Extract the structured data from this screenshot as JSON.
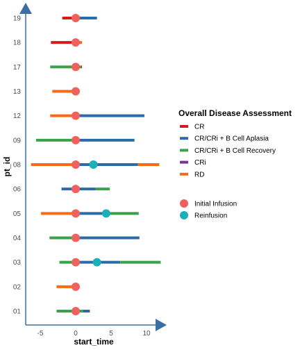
{
  "chart_data": {
    "type": "swimmer",
    "xlabel": "start_time",
    "ylabel": "pt_id",
    "xlim": [
      -7,
      12.5
    ],
    "x_ticks": [
      -5,
      0,
      5,
      10
    ],
    "categories": [
      "01",
      "02",
      "03",
      "04",
      "05",
      "06",
      "08",
      "09",
      "12",
      "13",
      "17",
      "18",
      "19"
    ],
    "legend_assessment": {
      "title": "Overall Disease Assessment",
      "items": [
        {
          "key": "CR",
          "label": "CR",
          "color": "#d7191c"
        },
        {
          "key": "BA",
          "label": "CR/CRi + B Cell Aplasia",
          "color": "#2c6ba8"
        },
        {
          "key": "BR",
          "label": "CR/CRi + B Cell Recovery",
          "color": "#3aa14a"
        },
        {
          "key": "CRi",
          "label": "CRi",
          "color": "#7b3294"
        },
        {
          "key": "RD",
          "label": "RD",
          "color": "#fb6a12"
        }
      ]
    },
    "legend_events": {
      "items": [
        {
          "key": "initial",
          "label": "Initial Infusion",
          "color": "#f0605d"
        },
        {
          "key": "reinfusion",
          "label": "Reinfusion",
          "color": "#1ab0b8"
        }
      ]
    },
    "segments": [
      {
        "pt": "01",
        "start": -2.7,
        "end": 1.0,
        "status": "BR"
      },
      {
        "pt": "01",
        "start": 1.0,
        "end": 2.0,
        "status": "BA"
      },
      {
        "pt": "02",
        "start": -2.7,
        "end": 0.0,
        "status": "RD"
      },
      {
        "pt": "03",
        "start": -2.3,
        "end": 0.0,
        "status": "BR"
      },
      {
        "pt": "03",
        "start": 0.0,
        "end": 6.3,
        "status": "BA"
      },
      {
        "pt": "03",
        "start": 6.3,
        "end": 12.0,
        "status": "BR"
      },
      {
        "pt": "04",
        "start": -3.7,
        "end": 0.0,
        "status": "BR"
      },
      {
        "pt": "04",
        "start": 0.0,
        "end": 9.0,
        "status": "BA"
      },
      {
        "pt": "05",
        "start": -4.9,
        "end": 0.0,
        "status": "RD"
      },
      {
        "pt": "05",
        "start": 0.0,
        "end": 4.5,
        "status": "BA"
      },
      {
        "pt": "05",
        "start": 4.5,
        "end": 8.9,
        "status": "BR"
      },
      {
        "pt": "06",
        "start": -2.0,
        "end": 2.8,
        "status": "BA"
      },
      {
        "pt": "06",
        "start": 2.8,
        "end": 4.8,
        "status": "BR"
      },
      {
        "pt": "08",
        "start": -6.3,
        "end": 0.0,
        "status": "RD"
      },
      {
        "pt": "08",
        "start": 0.0,
        "end": 8.8,
        "status": "BA"
      },
      {
        "pt": "08",
        "start": 8.8,
        "end": 11.8,
        "status": "RD"
      },
      {
        "pt": "09",
        "start": -5.6,
        "end": 0.0,
        "status": "BR"
      },
      {
        "pt": "09",
        "start": 0.0,
        "end": 8.3,
        "status": "BA"
      },
      {
        "pt": "12",
        "start": -3.6,
        "end": 0.0,
        "status": "RD"
      },
      {
        "pt": "12",
        "start": 0.0,
        "end": 9.7,
        "status": "BA"
      },
      {
        "pt": "13",
        "start": -3.3,
        "end": 0.0,
        "status": "RD"
      },
      {
        "pt": "17",
        "start": -3.6,
        "end": 0.8,
        "status": "BR"
      },
      {
        "pt": "17",
        "start": 0.8,
        "end": 0.9,
        "status": "CR"
      },
      {
        "pt": "18",
        "start": -3.5,
        "end": 0.0,
        "status": "CR"
      },
      {
        "pt": "18",
        "start": 0.0,
        "end": 0.9,
        "status": "RD"
      },
      {
        "pt": "19",
        "start": -1.9,
        "end": 0.0,
        "status": "CR"
      },
      {
        "pt": "19",
        "start": 0.0,
        "end": 3.0,
        "status": "BA"
      }
    ],
    "events": [
      {
        "pt": "01",
        "x": 0,
        "type": "initial"
      },
      {
        "pt": "02",
        "x": 0,
        "type": "initial"
      },
      {
        "pt": "03",
        "x": 0,
        "type": "initial"
      },
      {
        "pt": "03",
        "x": 3.0,
        "type": "reinfusion"
      },
      {
        "pt": "04",
        "x": 0,
        "type": "initial"
      },
      {
        "pt": "05",
        "x": 0,
        "type": "initial"
      },
      {
        "pt": "05",
        "x": 4.3,
        "type": "reinfusion"
      },
      {
        "pt": "06",
        "x": 0,
        "type": "initial"
      },
      {
        "pt": "08",
        "x": 0,
        "type": "initial"
      },
      {
        "pt": "08",
        "x": 2.5,
        "type": "reinfusion"
      },
      {
        "pt": "09",
        "x": 0,
        "type": "initial"
      },
      {
        "pt": "12",
        "x": 0,
        "type": "initial"
      },
      {
        "pt": "13",
        "x": 0,
        "type": "initial"
      },
      {
        "pt": "17",
        "x": 0,
        "type": "initial"
      },
      {
        "pt": "18",
        "x": 0,
        "type": "initial"
      },
      {
        "pt": "19",
        "x": 0,
        "type": "initial"
      }
    ],
    "axis_color": "#3a6ea5",
    "grid": false
  }
}
